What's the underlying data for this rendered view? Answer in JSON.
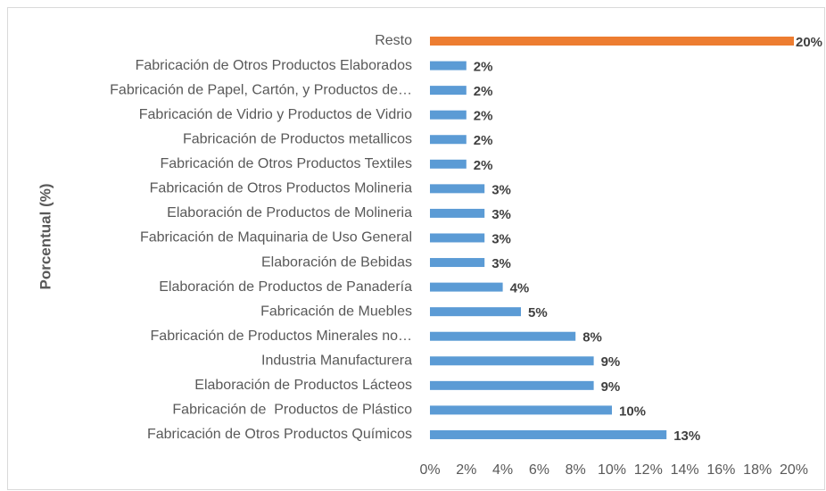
{
  "chart_data": {
    "type": "hbar",
    "y_label": "Porcentual (%)",
    "categories": [
      "Resto",
      "Fabricación de Otros Productos Elaborados",
      "Fabricación de Papel, Cartón, y Productos de…",
      "Fabricación de Vidrio y Productos de Vidrio",
      "Fabricación de Productos metallicos",
      "Fabricación de Otros Productos Textiles",
      "Fabricación de Otros Productos Molineria",
      "Elaboración de Productos de Molineria",
      "Fabricación de Maquinaria de Uso General",
      "Elaboración de Bebidas",
      "Elaboración de Productos de Panadería",
      "Fabricación de Muebles",
      "Fabricación de Productos Minerales no…",
      "Industria Manufacturera",
      "Elaboración de Productos Lácteos",
      "Fabricación de  Productos de Plástico",
      "Fabricación de Otros Productos Químicos"
    ],
    "values": [
      20,
      2,
      2,
      2,
      2,
      2,
      3,
      3,
      3,
      3,
      4,
      5,
      8,
      9,
      9,
      10,
      13
    ],
    "value_labels": [
      "20%",
      "2%",
      "2%",
      "2%",
      "2%",
      "2%",
      "3%",
      "3%",
      "3%",
      "3%",
      "4%",
      "5%",
      "8%",
      "9%",
      "9%",
      "10%",
      "13%"
    ],
    "colors": [
      "#ed7d31",
      "#5b9bd5",
      "#5b9bd5",
      "#5b9bd5",
      "#5b9bd5",
      "#5b9bd5",
      "#5b9bd5",
      "#5b9bd5",
      "#5b9bd5",
      "#5b9bd5",
      "#5b9bd5",
      "#5b9bd5",
      "#5b9bd5",
      "#5b9bd5",
      "#5b9bd5",
      "#5b9bd5",
      "#5b9bd5"
    ],
    "xlim": [
      0,
      20
    ],
    "xticks": [
      {
        "value": 0,
        "label": "0%"
      },
      {
        "value": 2,
        "label": "2%"
      },
      {
        "value": 4,
        "label": "4%"
      },
      {
        "value": 6,
        "label": "6%"
      },
      {
        "value": 8,
        "label": "8%"
      },
      {
        "value": 10,
        "label": "10%"
      },
      {
        "value": 12,
        "label": "12%"
      },
      {
        "value": 14,
        "label": "14%"
      },
      {
        "value": 16,
        "label": "16%"
      },
      {
        "value": 18,
        "label": "18%"
      },
      {
        "value": 20,
        "label": "20%"
      }
    ],
    "grid": false
  }
}
